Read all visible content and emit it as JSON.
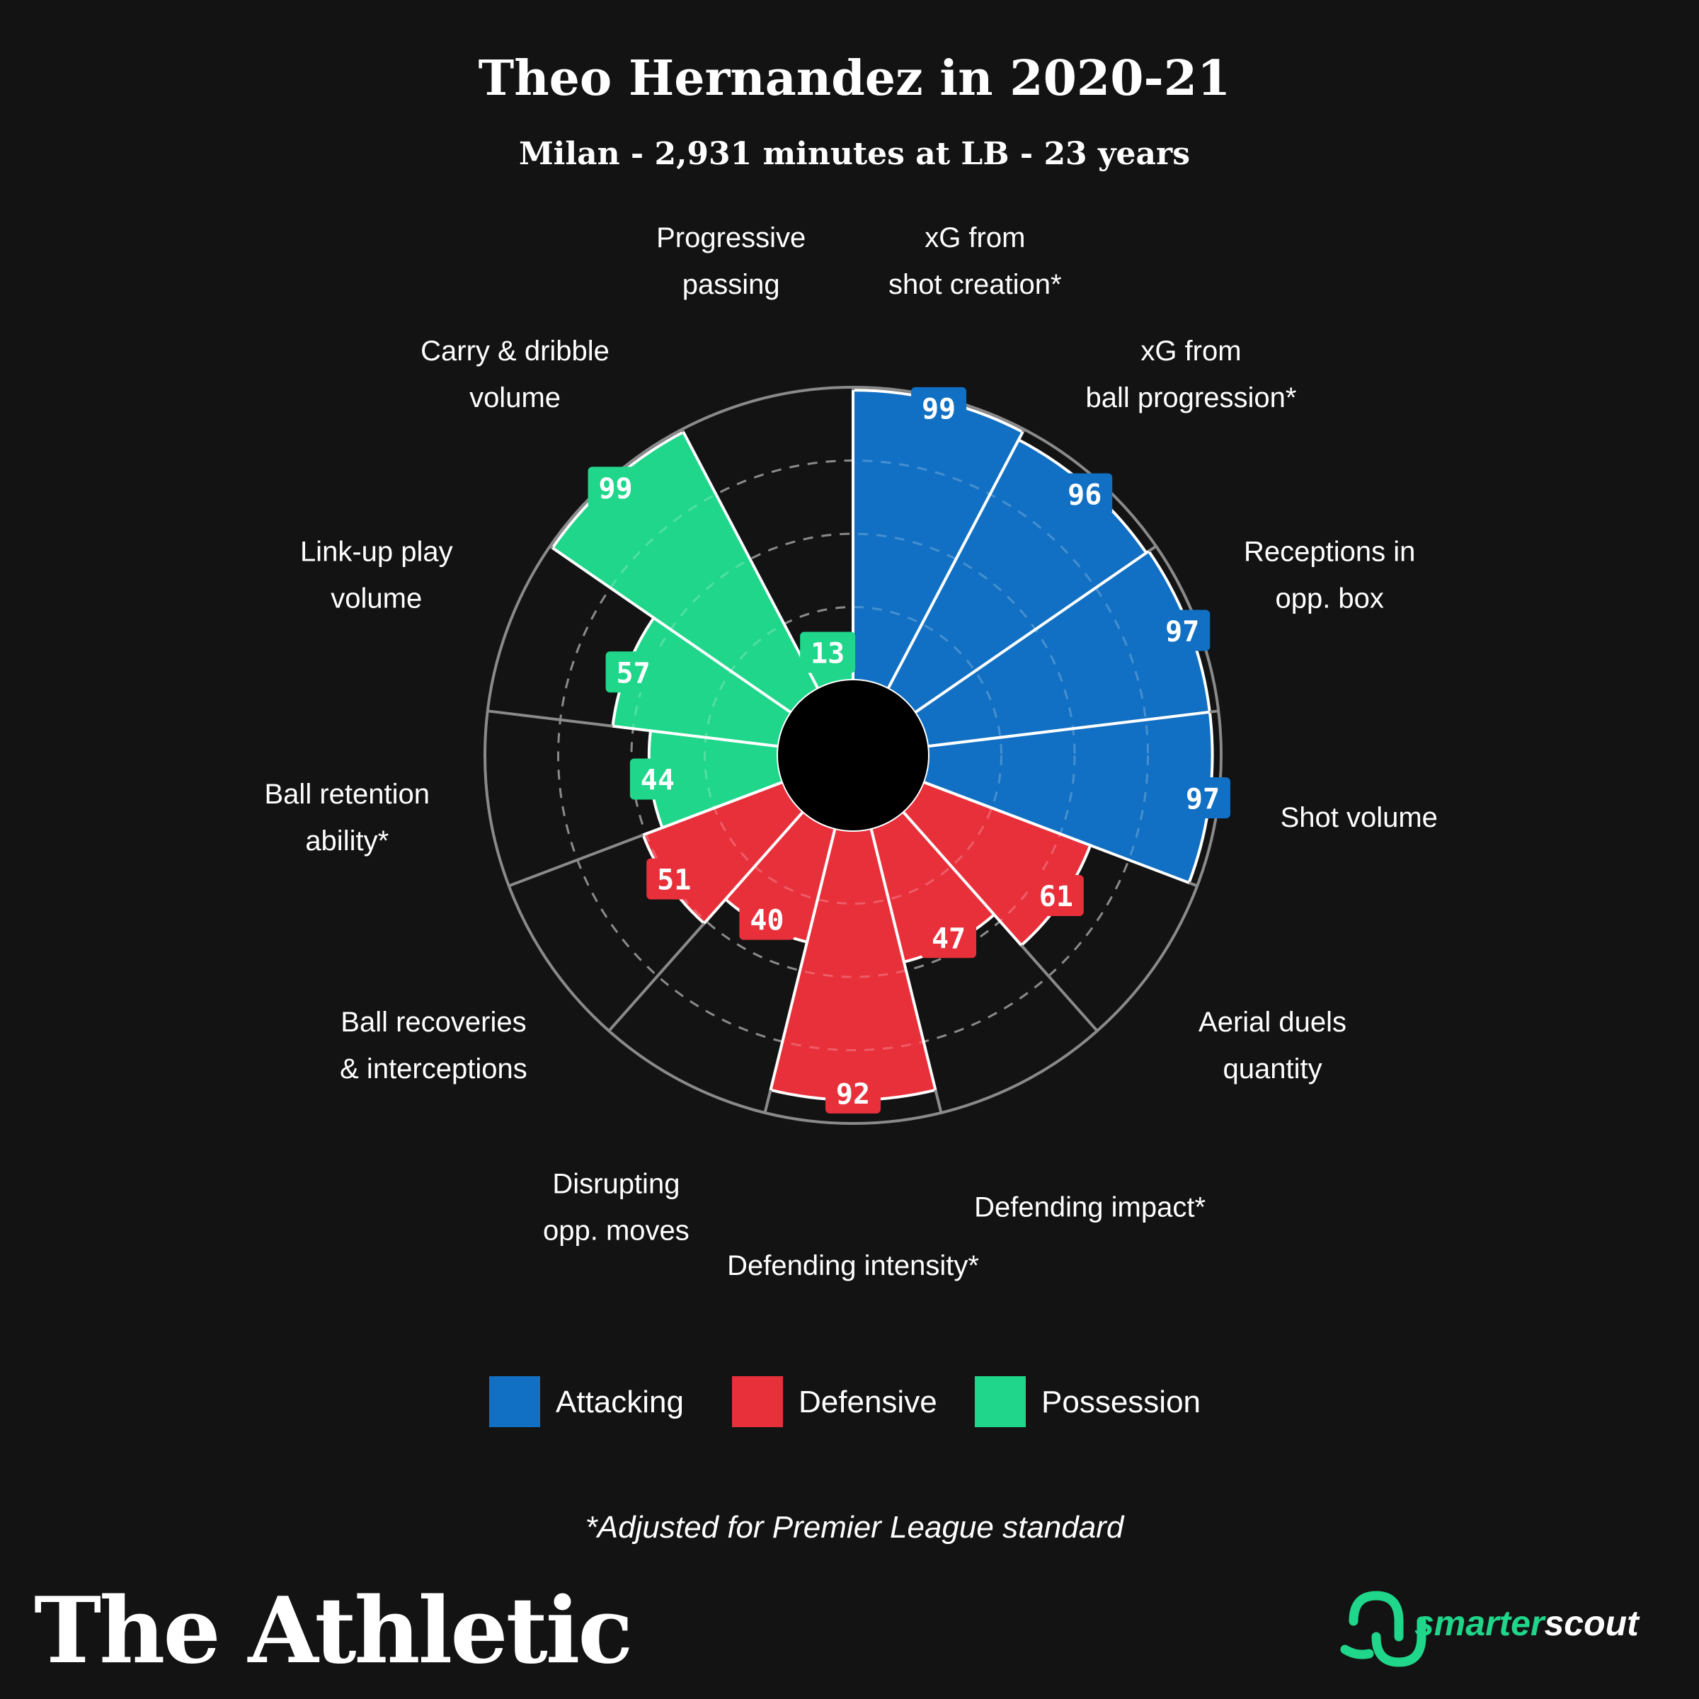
{
  "header": {
    "title": "Theo Hernandez in 2020-21",
    "subtitle": "Milan - 2,931 minutes at LB - 23 years"
  },
  "colors": {
    "background": "#131313",
    "Attacking": "#1170c3",
    "Defensive": "#e8303b",
    "Possession": "#1fd68a",
    "ring": "#8a8a8a",
    "center": "#000000"
  },
  "chart_data": {
    "type": "polar-bar",
    "title": "Theo Hernandez in 2020-21",
    "subtitle": "Milan - 2,931 minutes at LB - 23 years",
    "rlim": [
      0,
      100
    ],
    "categories": [
      {
        "label": [
          "xG from",
          "shot creation*"
        ],
        "value": 99,
        "group": "Attacking"
      },
      {
        "label": [
          "xG from",
          "ball progression*"
        ],
        "value": 96,
        "group": "Attacking"
      },
      {
        "label": [
          "Receptions in",
          "opp. box"
        ],
        "value": 97,
        "group": "Attacking"
      },
      {
        "label": [
          "Shot volume"
        ],
        "value": 97,
        "group": "Attacking"
      },
      {
        "label": [
          "Aerial duels",
          "quantity"
        ],
        "value": 61,
        "group": "Defensive"
      },
      {
        "label": [
          "Defending impact*"
        ],
        "value": 47,
        "group": "Defensive"
      },
      {
        "label": [
          "Defending intensity*"
        ],
        "value": 92,
        "group": "Defensive"
      },
      {
        "label": [
          "Disrupting",
          "opp. moves"
        ],
        "value": 40,
        "group": "Defensive"
      },
      {
        "label": [
          "Ball recoveries",
          "& interceptions"
        ],
        "value": 51,
        "group": "Defensive"
      },
      {
        "label": [
          "Ball retention",
          "ability*"
        ],
        "value": 44,
        "group": "Possession"
      },
      {
        "label": [
          "Link-up play",
          "volume"
        ],
        "value": 57,
        "group": "Possession"
      },
      {
        "label": [
          "Carry & dribble",
          "volume"
        ],
        "value": 99,
        "group": "Possession"
      },
      {
        "label": [
          "Progressive",
          "passing"
        ],
        "value": 13,
        "group": "Possession"
      }
    ],
    "legend": {
      "position": "bottom",
      "items": [
        "Attacking",
        "Defensive",
        "Possession"
      ]
    },
    "grid": true
  },
  "footnote": "*Adjusted for Premier League standard",
  "branding": {
    "publisher": "The Athletic",
    "partner_a": "smarter",
    "partner_b": "scout"
  }
}
